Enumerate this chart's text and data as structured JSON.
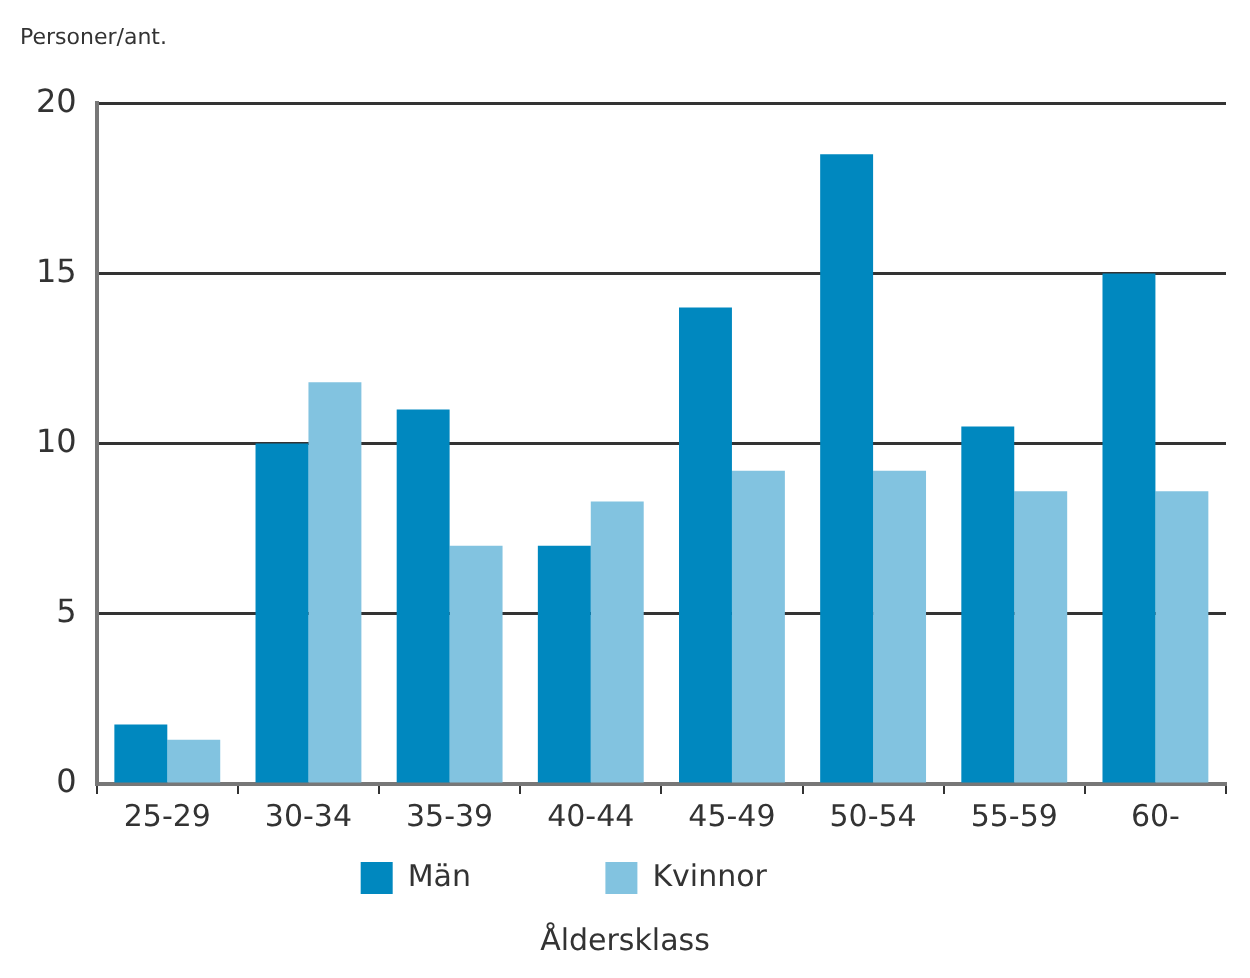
{
  "chart_data": {
    "type": "bar",
    "ylabel": "Personer/ant.",
    "xlabel": "Åldersklass",
    "categories": [
      "25-29",
      "30-34",
      "35-39",
      "40-44",
      "45-49",
      "50-54",
      "55-59",
      "60-"
    ],
    "series": [
      {
        "name": "Män",
        "color": "#0088bf",
        "values": [
          1.75,
          10,
          11,
          7,
          14,
          18.5,
          10.5,
          15
        ]
      },
      {
        "name": "Kvinnor",
        "color": "#82c3e0",
        "values": [
          1.3,
          11.8,
          7,
          8.3,
          9.2,
          9.2,
          8.6,
          8.6
        ]
      }
    ],
    "ylim": [
      0,
      20
    ],
    "yticks": [
      0,
      5,
      10,
      15,
      20
    ],
    "grid": "y",
    "legend": "bottom"
  }
}
